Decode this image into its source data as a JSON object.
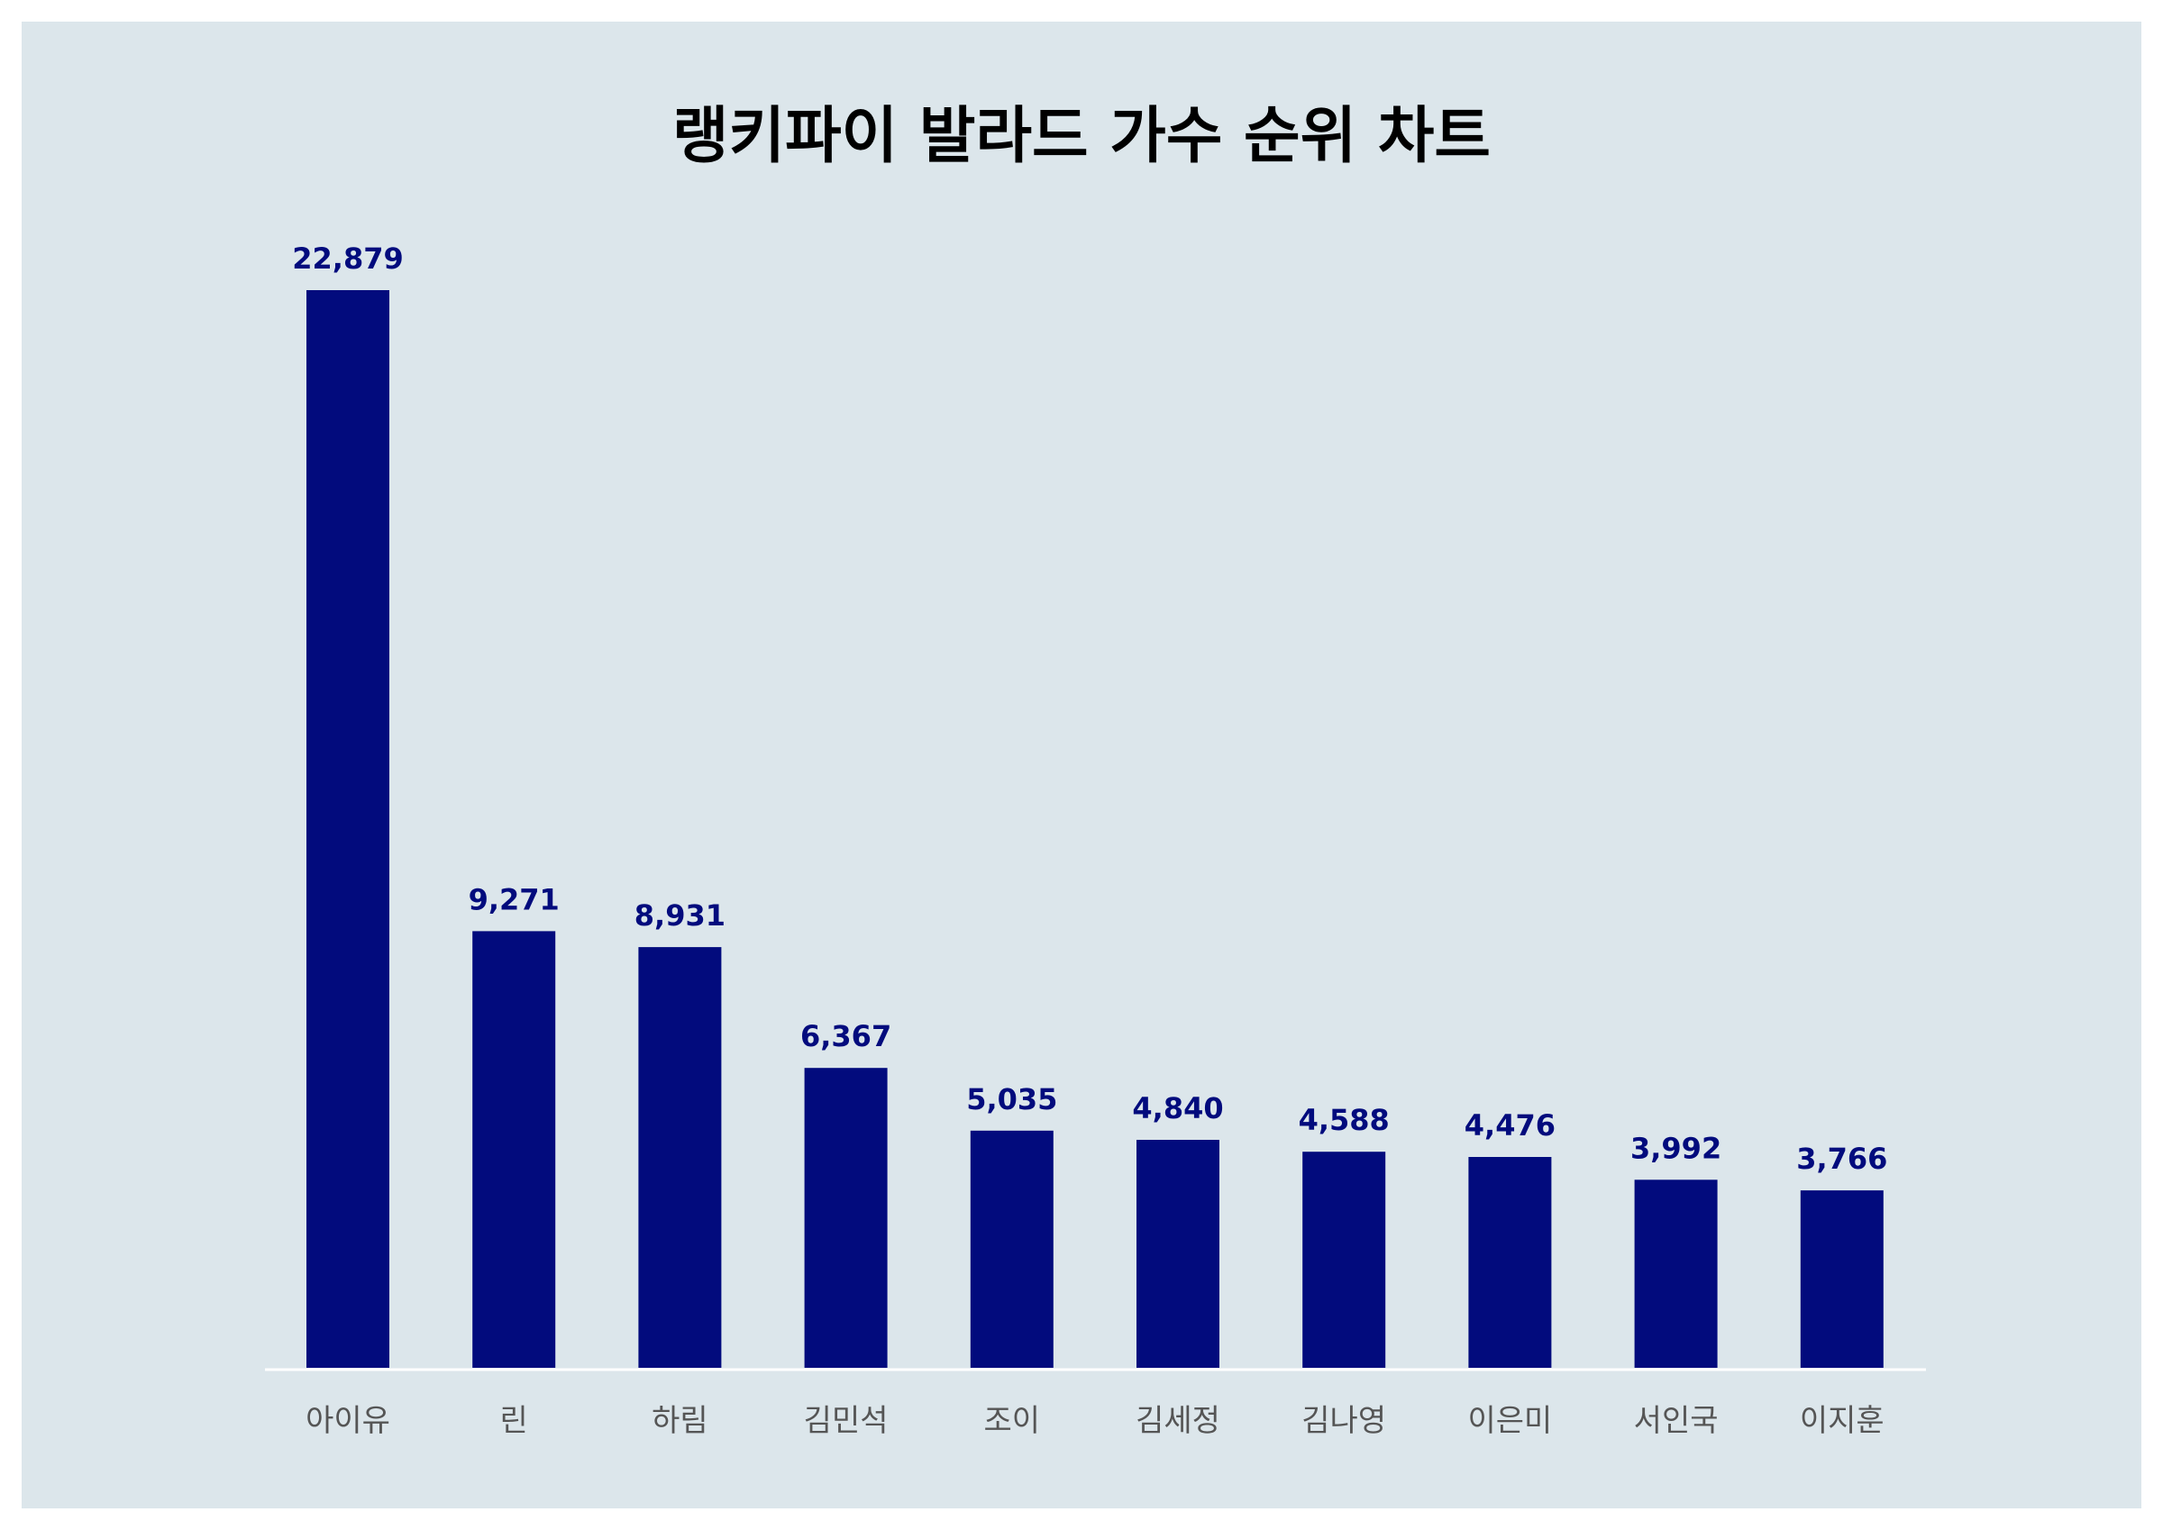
{
  "chart_data": {
    "type": "bar",
    "title": "랭키파이 발라드 가수 순위 차트",
    "categories": [
      "아이유",
      "린",
      "하림",
      "김민석",
      "조이",
      "김세정",
      "김나영",
      "이은미",
      "서인국",
      "이지훈"
    ],
    "values": [
      22879,
      9271,
      8931,
      6367,
      5035,
      4840,
      4588,
      4476,
      3992,
      3766
    ],
    "value_labels": [
      "22,879",
      "9,271",
      "8,931",
      "6,367",
      "5,035",
      "4,840",
      "4,588",
      "4,476",
      "3,992",
      "3,766"
    ],
    "xlabel": "",
    "ylabel": "",
    "ylim": [
      0,
      22879
    ],
    "grid": false,
    "legend": "none"
  },
  "colors": {
    "panel_background": "#dce6eb",
    "bar": "#020b7d",
    "value_label": "#020b7d",
    "category_label": "#555555",
    "baseline": "#ffffff"
  }
}
